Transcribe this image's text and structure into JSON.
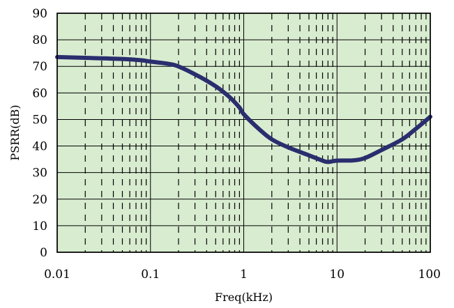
{
  "chart_data": {
    "type": "line",
    "title": "",
    "xlabel": "Freq(kHz)",
    "ylabel": "PSRR(dB)",
    "x_scale": "log",
    "xlim": [
      0.01,
      100
    ],
    "ylim": [
      0,
      90
    ],
    "x_ticks": [
      0.01,
      0.1,
      1,
      10,
      100
    ],
    "x_tick_labels": [
      "0.01",
      "0.1",
      "1",
      "10",
      "100"
    ],
    "y_ticks": [
      0,
      10,
      20,
      30,
      40,
      50,
      60,
      70,
      80,
      90
    ],
    "y_tick_labels": [
      "0",
      "10",
      "20",
      "30",
      "40",
      "50",
      "60",
      "70",
      "80",
      "90"
    ],
    "grid": true,
    "minor_grid_style": "dashed",
    "background_color": "#d8ecd0",
    "series": [
      {
        "color": "#2a2e6e",
        "x": [
          0.01,
          0.02,
          0.05,
          0.08,
          0.1,
          0.18,
          0.3,
          0.5,
          0.7,
          0.9,
          1,
          1.5,
          2,
          3,
          5,
          7,
          8,
          10,
          15,
          20,
          30,
          50,
          70,
          100
        ],
        "y": [
          73.5,
          73.2,
          72.8,
          72.3,
          71.8,
          70.5,
          67,
          62.5,
          58.5,
          54.5,
          52,
          46,
          42.5,
          39.5,
          36.5,
          34.5,
          34,
          34.5,
          34.6,
          35.5,
          38.5,
          42.5,
          46.5,
          51
        ]
      }
    ]
  }
}
